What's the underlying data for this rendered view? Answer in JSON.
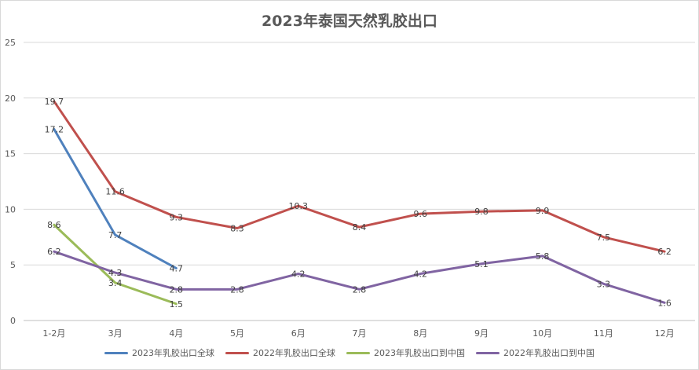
{
  "chart_data": {
    "type": "line",
    "title": "2023年泰国天然乳胶出口",
    "categories": [
      "1-2月",
      "3月",
      "4月",
      "5月",
      "6月",
      "7月",
      "8月",
      "9月",
      "10月",
      "11月",
      "12月"
    ],
    "ylim": [
      0,
      25
    ],
    "yticks": [
      0,
      5,
      10,
      15,
      20,
      25
    ],
    "grid": true,
    "legend_position": "bottom",
    "series": [
      {
        "name": "2023年乳胶出口全球",
        "color": "#4f81bd",
        "values": [
          17.2,
          7.7,
          4.7,
          null,
          null,
          null,
          null,
          null,
          null,
          null,
          null
        ]
      },
      {
        "name": "2022年乳胶出口全球",
        "color": "#c0504d",
        "values": [
          19.7,
          11.6,
          9.3,
          8.3,
          10.3,
          8.4,
          9.6,
          9.8,
          9.9,
          7.5,
          6.2
        ]
      },
      {
        "name": "2023年乳胶出口到中国",
        "color": "#9bbb59",
        "values": [
          8.6,
          3.4,
          1.5,
          null,
          null,
          null,
          null,
          null,
          null,
          null,
          null
        ]
      },
      {
        "name": "2022年乳胶出口到中国",
        "color": "#8064a2",
        "values": [
          6.2,
          4.3,
          2.8,
          2.8,
          4.2,
          2.8,
          4.2,
          5.1,
          5.8,
          3.3,
          1.6
        ]
      }
    ]
  }
}
